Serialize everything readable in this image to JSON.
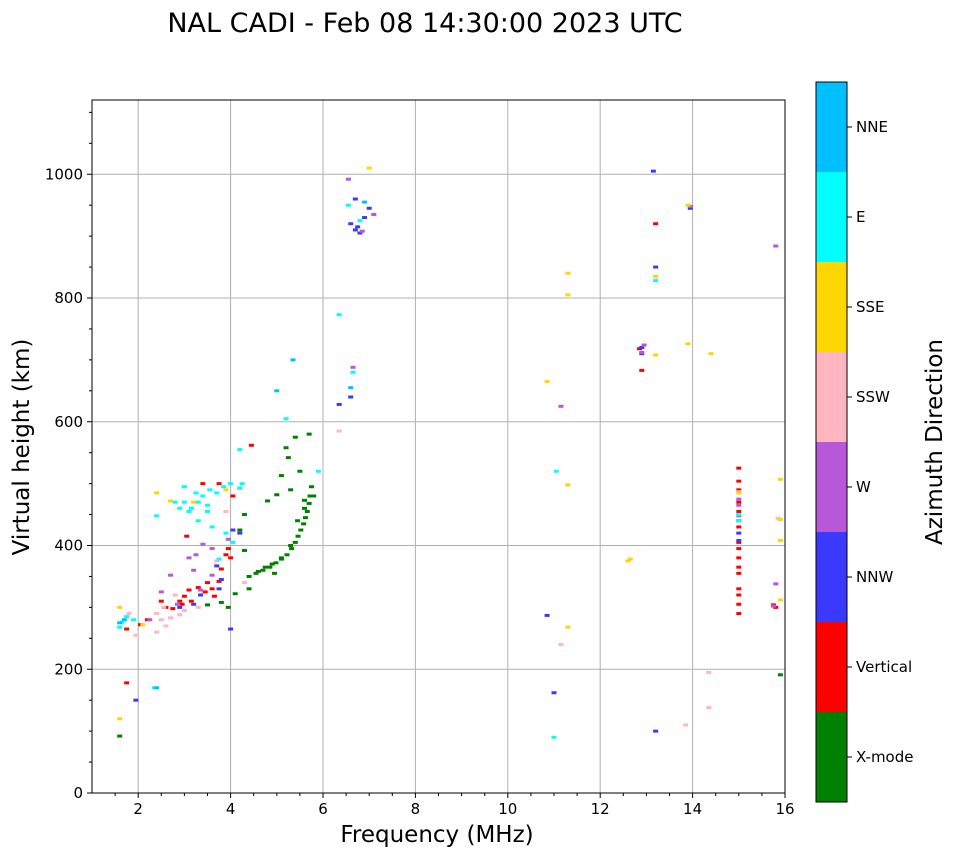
{
  "chart_data": {
    "type": "scatter",
    "title": "NAL CADI - Feb 08 14:30:00 2023 UTC",
    "xlabel": "Frequency (MHz)",
    "ylabel": "Virtual height (km)",
    "xlim": [
      1,
      16
    ],
    "ylim": [
      0,
      1120
    ],
    "xticks": [
      2,
      4,
      6,
      8,
      10,
      12,
      14,
      16
    ],
    "yticks": [
      0,
      200,
      400,
      600,
      800,
      1000
    ],
    "grid": true,
    "colorbar": {
      "label": "Azimuth Direction",
      "categories": [
        "X-mode",
        "Vertical",
        "NNW",
        "W",
        "SSW",
        "SSE",
        "E",
        "NNE"
      ],
      "colors": [
        "#008000",
        "#ff0000",
        "#3a3aff",
        "#b858d8",
        "#ffb6c1",
        "#ffd700",
        "#00ffff",
        "#00bfff"
      ]
    },
    "series": [
      {
        "name": "X-mode",
        "color": "#008000",
        "points": [
          [
            5.75,
            495
          ],
          [
            5.72,
            480
          ],
          [
            5.7,
            468
          ],
          [
            5.66,
            455
          ],
          [
            5.62,
            445
          ],
          [
            5.58,
            435
          ],
          [
            5.52,
            425
          ],
          [
            5.46,
            415
          ],
          [
            5.4,
            405
          ],
          [
            5.32,
            395
          ],
          [
            5.22,
            385
          ],
          [
            5.1,
            378
          ],
          [
            4.98,
            372
          ],
          [
            4.85,
            365
          ],
          [
            4.7,
            360
          ],
          [
            4.55,
            355
          ],
          [
            4.4,
            350
          ],
          [
            5.8,
            480
          ],
          [
            5.6,
            460
          ],
          [
            5.3,
            400
          ],
          [
            5.1,
            380
          ],
          [
            4.9,
            370
          ],
          [
            4.95,
            355
          ],
          [
            4.4,
            330
          ],
          [
            4.1,
            322
          ],
          [
            3.95,
            300
          ],
          [
            3.5,
            304
          ],
          [
            3.8,
            308
          ],
          [
            5.4,
            575
          ],
          [
            5.7,
            580
          ],
          [
            4.3,
            392
          ],
          [
            4.2,
            425
          ],
          [
            4.3,
            450
          ],
          [
            4.8,
            472
          ],
          [
            5.2,
            558
          ],
          [
            5.3,
            490
          ],
          [
            5.0,
            482
          ],
          [
            5.1,
            513
          ],
          [
            5.5,
            520
          ],
          [
            5.25,
            542
          ],
          [
            5.6,
            473
          ],
          [
            5.45,
            440
          ],
          [
            4.75,
            365
          ],
          [
            4.6,
            358
          ],
          [
            1.6,
            92
          ],
          [
            15.9,
            191
          ]
        ]
      },
      {
        "name": "Vertical",
        "color": "#ff0000",
        "points": [
          [
            2.5,
            310
          ],
          [
            2.6,
            300
          ],
          [
            2.75,
            298
          ],
          [
            2.9,
            310
          ],
          [
            3.0,
            318
          ],
          [
            3.1,
            328
          ],
          [
            3.3,
            332
          ],
          [
            3.45,
            325
          ],
          [
            3.6,
            330
          ],
          [
            3.75,
            342
          ],
          [
            3.9,
            385
          ],
          [
            3.95,
            395
          ],
          [
            3.05,
            415
          ],
          [
            3.8,
            362
          ],
          [
            4.05,
            480
          ],
          [
            3.75,
            500
          ],
          [
            3.4,
            500
          ],
          [
            3.15,
            310
          ],
          [
            2.95,
            305
          ],
          [
            3.5,
            340
          ],
          [
            3.65,
            318
          ],
          [
            2.2,
            280
          ],
          [
            2.05,
            272
          ],
          [
            1.75,
            265
          ],
          [
            4.45,
            562
          ],
          [
            1.75,
            178
          ],
          [
            13.2,
            920
          ],
          [
            12.9,
            683
          ],
          [
            12.85,
            718
          ],
          [
            15.0,
            525
          ],
          [
            15.0,
            504
          ],
          [
            15.0,
            490
          ],
          [
            15.0,
            470
          ],
          [
            15.0,
            455
          ],
          [
            15.0,
            440
          ],
          [
            15.0,
            430
          ],
          [
            15.0,
            405
          ],
          [
            15.0,
            395
          ],
          [
            15.0,
            380
          ],
          [
            15.0,
            365
          ],
          [
            15.0,
            355
          ],
          [
            15.0,
            330
          ],
          [
            15.0,
            320
          ],
          [
            15.0,
            305
          ],
          [
            15.0,
            290
          ],
          [
            15.8,
            300
          ],
          [
            15.75,
            304
          ],
          [
            4.0,
            380
          ]
        ]
      },
      {
        "name": "NNW",
        "color": "#3a3aff",
        "points": [
          [
            2.9,
            300
          ],
          [
            3.2,
            305
          ],
          [
            3.75,
            330
          ],
          [
            3.8,
            345
          ],
          [
            4.05,
            425
          ],
          [
            4.2,
            420
          ],
          [
            3.7,
            367
          ],
          [
            3.35,
            320
          ],
          [
            6.7,
            910
          ],
          [
            6.75,
            915
          ],
          [
            6.6,
            920
          ],
          [
            6.8,
            905
          ],
          [
            6.9,
            930
          ],
          [
            6.7,
            960
          ],
          [
            7.0,
            945
          ],
          [
            6.6,
            640
          ],
          [
            6.35,
            628
          ],
          [
            10.85,
            287
          ],
          [
            11.0,
            162
          ],
          [
            13.15,
            1005
          ],
          [
            13.2,
            850
          ],
          [
            12.9,
            710
          ],
          [
            12.9,
            720
          ],
          [
            13.2,
            100
          ],
          [
            13.95,
            945
          ],
          [
            4.0,
            265
          ],
          [
            1.95,
            150
          ],
          [
            15.0,
            408
          ],
          [
            15.0,
            420
          ]
        ]
      },
      {
        "name": "W",
        "color": "#b858d8",
        "points": [
          [
            6.55,
            992
          ],
          [
            6.65,
            688
          ],
          [
            6.85,
            908
          ],
          [
            7.1,
            935
          ],
          [
            12.9,
            712
          ],
          [
            12.95,
            724
          ],
          [
            15.8,
            884
          ],
          [
            15.8,
            338
          ],
          [
            11.15,
            625
          ],
          [
            13.95,
            948
          ],
          [
            2.85,
            305
          ],
          [
            3.35,
            328
          ],
          [
            3.6,
            352
          ],
          [
            3.25,
            385
          ],
          [
            3.4,
            402
          ],
          [
            2.5,
            325
          ],
          [
            3.95,
            410
          ],
          [
            15.0,
            465
          ],
          [
            15.0,
            448
          ],
          [
            15.0,
            475
          ],
          [
            15.75,
            302
          ],
          [
            2.25,
            280
          ],
          [
            3.1,
            380
          ],
          [
            3.6,
            395
          ],
          [
            2.7,
            352
          ],
          [
            3.2,
            360
          ]
        ]
      },
      {
        "name": "SSW",
        "color": "#ffb6c1",
        "points": [
          [
            2.5,
            280
          ],
          [
            2.7,
            283
          ],
          [
            2.4,
            290
          ],
          [
            2.9,
            288
          ],
          [
            3.0,
            295
          ],
          [
            2.55,
            300
          ],
          [
            2.8,
            320
          ],
          [
            3.7,
            375
          ],
          [
            3.9,
            455
          ],
          [
            4.2,
            492
          ],
          [
            4.3,
            340
          ],
          [
            1.95,
            255
          ],
          [
            6.35,
            585
          ],
          [
            11.15,
            240
          ],
          [
            13.85,
            110
          ],
          [
            14.35,
            195
          ],
          [
            14.35,
            138
          ],
          [
            15.0,
            487
          ],
          [
            15.85,
            444
          ],
          [
            1.8,
            290
          ],
          [
            2.6,
            270
          ],
          [
            2.4,
            260
          ],
          [
            3.3,
            300
          ]
        ]
      },
      {
        "name": "SSE",
        "color": "#ffd700",
        "points": [
          [
            7.0,
            1010
          ],
          [
            10.85,
            665
          ],
          [
            11.3,
            840
          ],
          [
            11.3,
            805
          ],
          [
            11.3,
            498
          ],
          [
            11.3,
            268
          ],
          [
            12.6,
            375
          ],
          [
            12.65,
            378
          ],
          [
            13.2,
            835
          ],
          [
            13.2,
            708
          ],
          [
            13.9,
            726
          ],
          [
            13.9,
            950
          ],
          [
            14.4,
            710
          ],
          [
            15.9,
            507
          ],
          [
            15.9,
            442
          ],
          [
            15.9,
            408
          ],
          [
            15.9,
            312
          ],
          [
            15.0,
            485
          ],
          [
            1.6,
            120
          ],
          [
            2.1,
            272
          ],
          [
            1.6,
            300
          ],
          [
            2.4,
            485
          ],
          [
            3.2,
            470
          ],
          [
            3.9,
            490
          ],
          [
            2.7,
            472
          ]
        ]
      },
      {
        "name": "E",
        "color": "#00ffff",
        "points": [
          [
            3.0,
            470
          ],
          [
            3.1,
            455
          ],
          [
            3.15,
            460
          ],
          [
            3.3,
            470
          ],
          [
            3.4,
            480
          ],
          [
            3.55,
            490
          ],
          [
            3.7,
            485
          ],
          [
            3.85,
            495
          ],
          [
            4.0,
            500
          ],
          [
            4.2,
            493
          ],
          [
            2.9,
            460
          ],
          [
            2.8,
            470
          ],
          [
            3.5,
            465
          ],
          [
            3.25,
            485
          ],
          [
            3.6,
            430
          ],
          [
            3.9,
            420
          ],
          [
            4.05,
            405
          ],
          [
            3.3,
            440
          ],
          [
            2.4,
            448
          ],
          [
            6.35,
            773
          ],
          [
            6.65,
            680
          ],
          [
            6.55,
            950
          ],
          [
            6.8,
            925
          ],
          [
            11.05,
            520
          ],
          [
            11.0,
            90
          ],
          [
            13.2,
            828
          ],
          [
            15.0,
            450
          ],
          [
            15.0,
            440
          ],
          [
            1.6,
            268
          ],
          [
            1.65,
            276
          ],
          [
            1.75,
            285
          ],
          [
            1.9,
            280
          ],
          [
            2.35,
            170
          ],
          [
            3.5,
            455
          ],
          [
            3.0,
            495
          ],
          [
            4.2,
            555
          ],
          [
            5.2,
            605
          ],
          [
            5.9,
            520
          ],
          [
            4.25,
            500
          ],
          [
            3.75,
            378
          ]
        ]
      },
      {
        "name": "NNE",
        "color": "#00bfff",
        "points": [
          [
            5.0,
            650
          ],
          [
            6.6,
            655
          ],
          [
            5.35,
            700
          ],
          [
            6.9,
            955
          ],
          [
            1.6,
            275
          ],
          [
            1.7,
            280
          ],
          [
            2.4,
            170
          ]
        ]
      }
    ]
  }
}
